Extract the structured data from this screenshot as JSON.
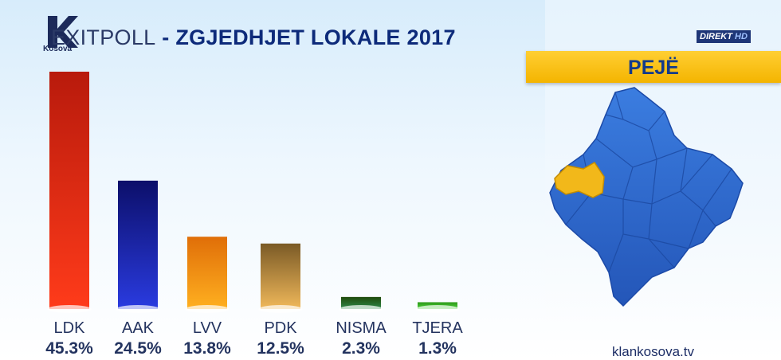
{
  "branding": {
    "logo_icon": "k-logo-icon",
    "logo_sub": "Kosova",
    "live_label": "DIREKT",
    "hd_label": "HD",
    "website": "klankosova.tv"
  },
  "header": {
    "title_part1": "EXITPOLL",
    "title_part2": " - ",
    "title_part3": "ZGJEDHJET LOKALE 2017"
  },
  "region": {
    "name": "PEJË",
    "highlight_color": "#f2b81a",
    "map_color": "#2f6fd6"
  },
  "colors": {
    "accent_blue": "#0d2a7a",
    "band_yellow": "#f4b400"
  },
  "chart_data": {
    "type": "bar",
    "title": "EXITPOLL - ZGJEDHJET LOKALE 2017",
    "categories": [
      "LDK",
      "AAK",
      "LVV",
      "PDK",
      "NISMA",
      "TJERA"
    ],
    "values": [
      45.3,
      24.5,
      13.8,
      12.5,
      2.3,
      1.3
    ],
    "value_labels": [
      "45.3%",
      "24.5%",
      "13.8%",
      "12.5%",
      "2.3%",
      "1.3%"
    ],
    "bar_colors_top": [
      "#b81a0c",
      "#0c0f6a",
      "#e06e08",
      "#7a5a26",
      "#1f4a0c",
      "#2f9a1a"
    ],
    "bar_colors_bottom": [
      "#ff3b1a",
      "#2a3be0",
      "#ffb020",
      "#f0b85a",
      "#2e8a4a",
      "#4ad03a"
    ],
    "xlabel": "",
    "ylabel": "",
    "grid": false,
    "legend": "none"
  }
}
